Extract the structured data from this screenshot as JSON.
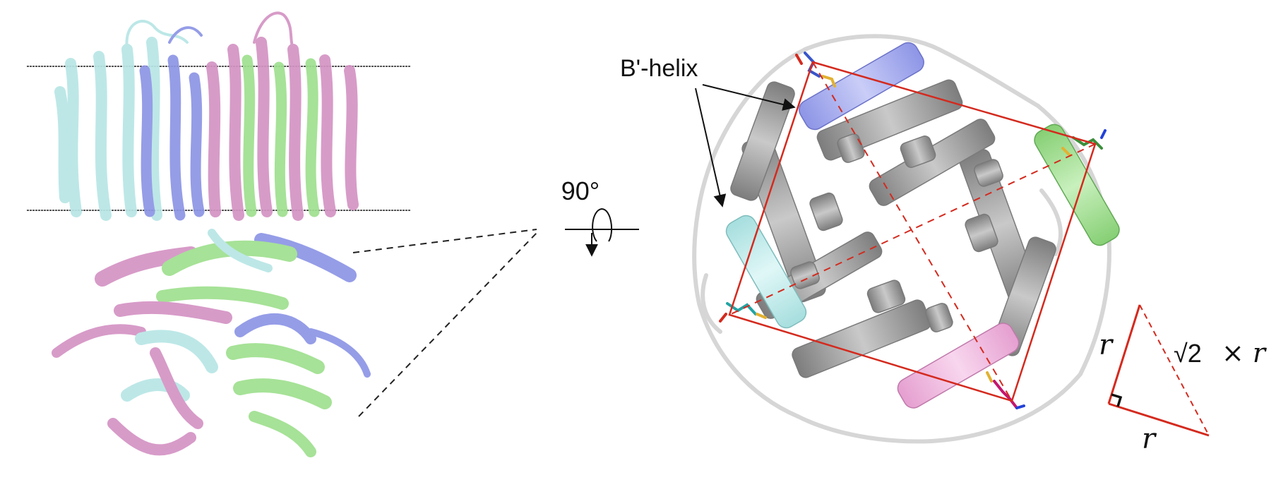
{
  "labels": {
    "helix": "B'-helix",
    "rotation": "90°",
    "side_r_vertical": "r",
    "side_r_horizontal": "r",
    "sqrt2": "√2",
    "times_r": "× r"
  },
  "colors": {
    "cyan": "#b8e6e6",
    "blue": "#8d95e6",
    "pink": "#d493c4",
    "green": "#9fe08f",
    "gray": "#9b9b9b",
    "red": "#d42a1e",
    "membrane": "#555555"
  }
}
